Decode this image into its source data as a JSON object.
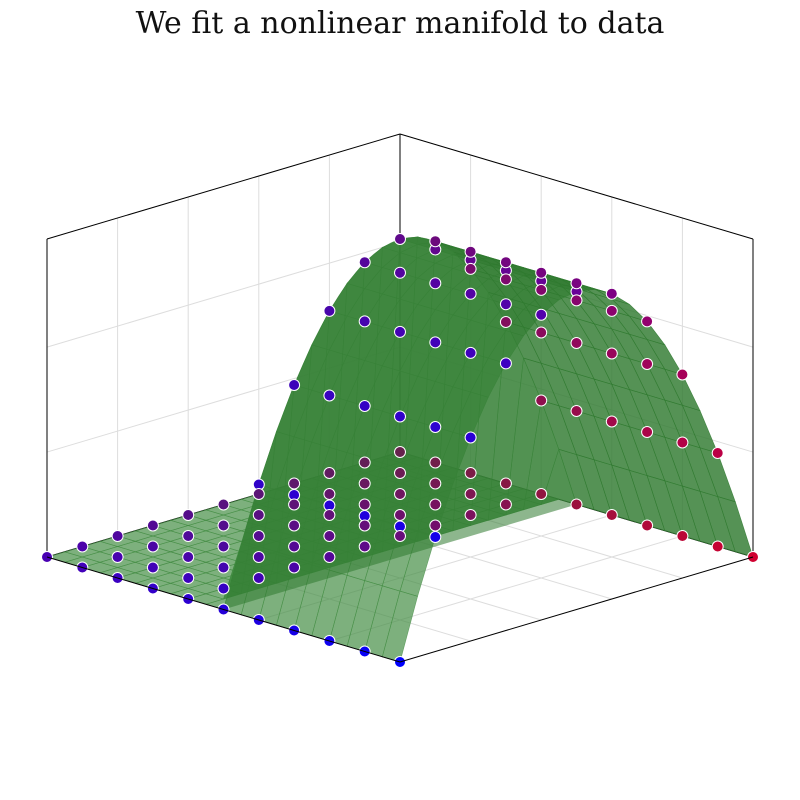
{
  "chart_data": {
    "type": "scatter3d",
    "title": "We fit a nonlinear manifold to data",
    "xlabel": "",
    "ylabel": "",
    "zlabel": "",
    "grid": true,
    "legend": "none",
    "tick_labels": "none",
    "surface": {
      "type": "ridge",
      "description_shape": "piecewise surface: flat plane for x in [-1,0], inverted parabola z = 1 - y^2 for x in [0,1]",
      "x_range": [
        -1,
        1
      ],
      "y_range": [
        -1,
        1
      ],
      "z_range": [
        0,
        1
      ]
    },
    "points": {
      "x": [
        -1,
        -0.8,
        -0.6,
        -0.4,
        -0.2,
        0,
        0.2,
        0.4,
        0.6,
        0.8,
        1
      ],
      "y": [
        -1,
        -0.8,
        -0.6,
        -0.4,
        -0.2,
        0,
        0.2,
        0.4,
        0.6,
        0.8,
        1
      ],
      "z_rule": "z = 0 for x < 0; z = 1 - y^2 for x >= 0",
      "color_scale": [
        "#0000ff",
        "#7a0080",
        "#d00030",
        "#7a3a00",
        "#202060"
      ]
    },
    "colors": {
      "surface": "#3f8a3f",
      "surface_back": "#2f7a2f",
      "grid": "#dddddd",
      "frame": "#000000",
      "marker_edge": "#ffffff"
    }
  }
}
